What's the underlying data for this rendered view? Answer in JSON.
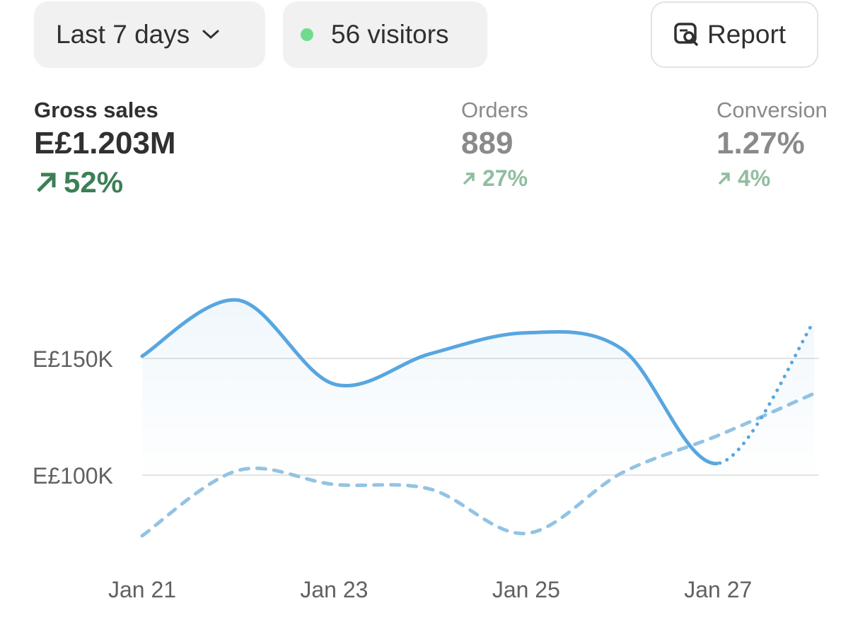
{
  "header": {
    "range_button": "Last 7 days",
    "visitors_button": "56 visitors",
    "report_button": "Report"
  },
  "metrics": [
    {
      "label": "Gross sales",
      "value": "E£1.203M",
      "change": "52%"
    },
    {
      "label": "Orders",
      "value": "889",
      "change": "27%"
    },
    {
      "label": "Conversion",
      "value": "1.27%",
      "change": "4%"
    }
  ],
  "chart_data": {
    "type": "line",
    "categories": [
      "Jan 21",
      null,
      "Jan 23",
      null,
      "Jan 25",
      null,
      "Jan 27",
      null
    ],
    "series": [
      {
        "color": "#58a6e0",
        "line_style": "solid",
        "area": true,
        "values": [
          151000,
          175000,
          139000,
          152000,
          161000,
          154000,
          105000,
          166000
        ]
      },
      {
        "color": "#93c3e3",
        "line_style": "dashed",
        "values": [
          74000,
          102000,
          96000,
          94000,
          75000,
          101000,
          117000,
          135000
        ]
      }
    ],
    "ylim": [
      60000,
      190000
    ],
    "yticks": [
      {
        "value": 100000,
        "label": "E£100K"
      },
      {
        "value": 150000,
        "label": "E£150K"
      }
    ],
    "grid": true
  }
}
